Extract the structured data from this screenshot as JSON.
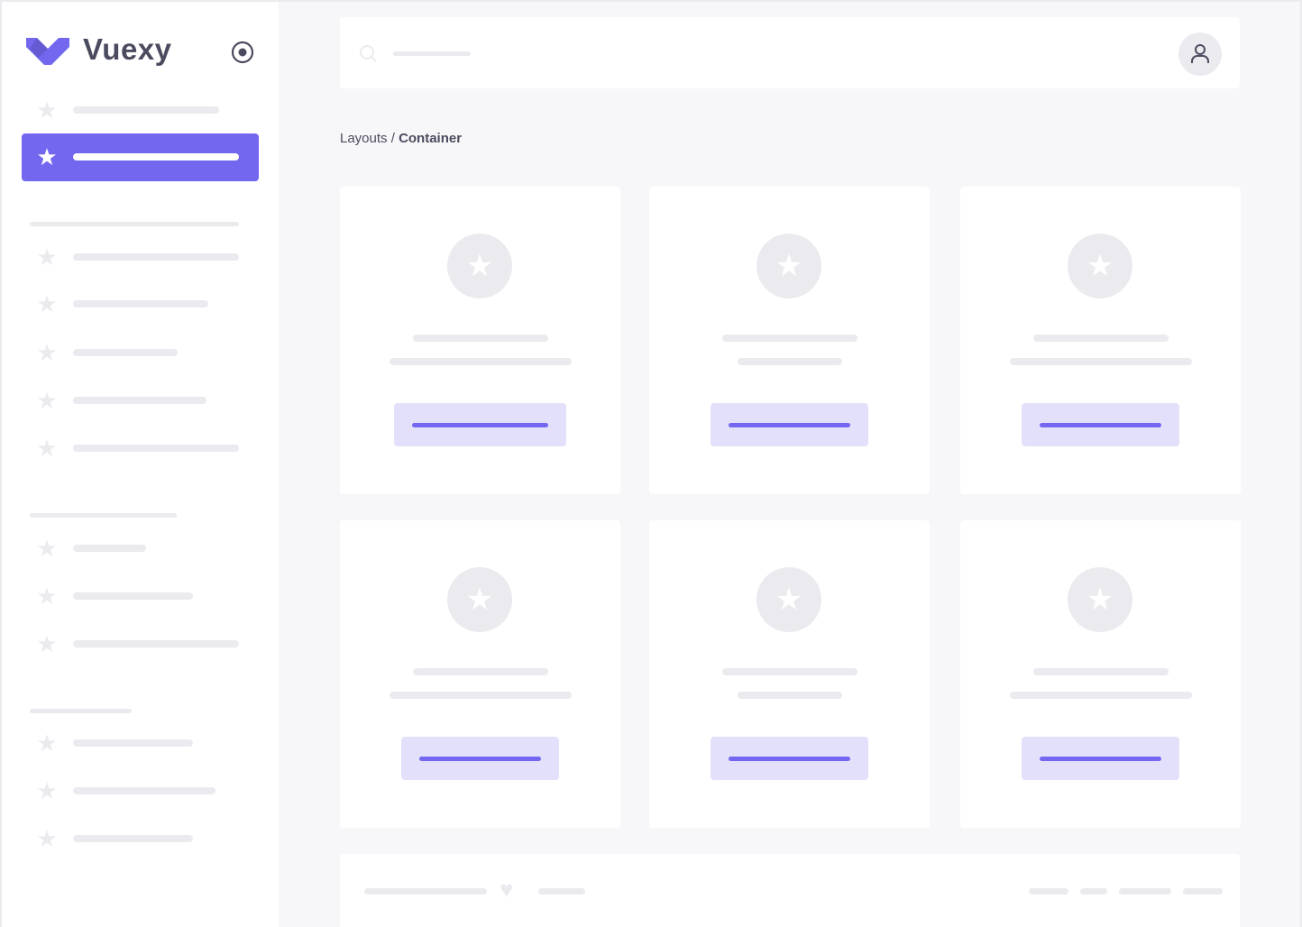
{
  "brand": {
    "name": "Vuexy",
    "color": "#7367f0"
  },
  "sidebar": {
    "toggle_icon": "radio-circle-icon",
    "item_icon": "star-icon",
    "active_index": 1
  },
  "header": {
    "search_icon": "search-icon",
    "avatar_icon": "user-icon"
  },
  "breadcrumb": {
    "parent": "Layouts",
    "separator": " / ",
    "current": "Container"
  },
  "footer": {
    "icon": "heart-icon"
  }
}
